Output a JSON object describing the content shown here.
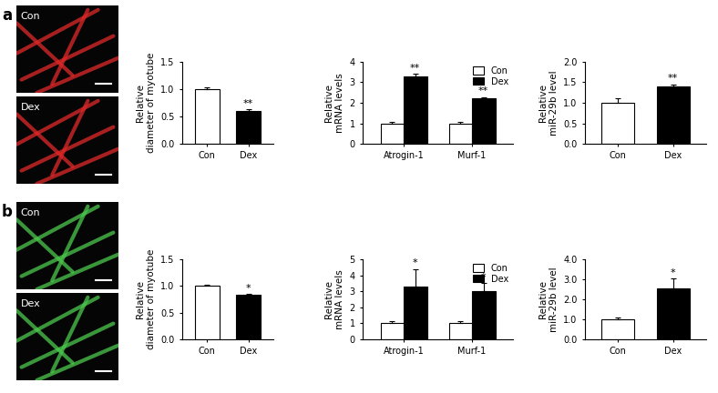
{
  "panels": [
    {
      "label": "a",
      "images": [
        "Con",
        "Dex"
      ]
    },
    {
      "label": "b",
      "images": [
        "Con",
        "Dex"
      ]
    }
  ],
  "chart_data": [
    {
      "type": "bar",
      "y_label": "Relative\ndiameter of myotube",
      "categories": [
        "Con",
        "Dex"
      ],
      "values": [
        1.0,
        0.6
      ],
      "errors": [
        0.04,
        0.03
      ],
      "colors": [
        "#ffffff",
        "#000000"
      ],
      "significance": [
        null,
        "**"
      ],
      "ylim": [
        0,
        1.5
      ],
      "yticks": [
        {
          "value": 0,
          "label": "0.0"
        },
        {
          "value": 0.5,
          "label": "0.5"
        },
        {
          "value": 1,
          "label": "1.0"
        },
        {
          "value": 1.5,
          "label": "1.5"
        }
      ]
    },
    {
      "type": "bar",
      "y_label": "Relative\nmRNA levels",
      "categories": [
        "Atrogin-1",
        "Murf-1"
      ],
      "series": [
        {
          "name": "Con",
          "color": "#ffffff",
          "values": [
            1.0,
            1.0
          ],
          "errors": [
            0.05,
            0.07
          ],
          "significance": [
            null,
            null
          ]
        },
        {
          "name": "Dex",
          "color": "#000000",
          "values": [
            3.3,
            2.2
          ],
          "errors": [
            0.1,
            0.08
          ],
          "significance": [
            "**",
            "**"
          ]
        }
      ],
      "legend": "upper right",
      "ylim": [
        0,
        4
      ],
      "yticks": [
        0,
        1,
        2,
        3,
        4
      ]
    },
    {
      "type": "bar",
      "y_label": "Relative\nmiR-29b level",
      "categories": [
        "Con",
        "Dex"
      ],
      "values": [
        1.0,
        1.4
      ],
      "errors": [
        0.1,
        0.05
      ],
      "colors": [
        "#ffffff",
        "#000000"
      ],
      "significance": [
        null,
        "**"
      ],
      "ylim": [
        0,
        2
      ],
      "yticks": [
        {
          "value": 0,
          "label": "0.0"
        },
        {
          "value": 0.5,
          "label": "0.5"
        },
        {
          "value": 1,
          "label": "1.0"
        },
        {
          "value": 1.5,
          "label": "1.5"
        },
        {
          "value": 2,
          "label": "2.0"
        }
      ]
    },
    {
      "type": "bar",
      "y_label": "Relative\ndiameter of myotube",
      "categories": [
        "Con",
        "Dex"
      ],
      "values": [
        1.0,
        0.83
      ],
      "errors": [
        0.03,
        0.02
      ],
      "colors": [
        "#ffffff",
        "#000000"
      ],
      "significance": [
        null,
        "*"
      ],
      "ylim": [
        0,
        1.5
      ],
      "yticks": [
        {
          "value": 0,
          "label": "0.0"
        },
        {
          "value": 0.5,
          "label": "0.5"
        },
        {
          "value": 1,
          "label": "1.0"
        },
        {
          "value": 1.5,
          "label": "1.5"
        }
      ]
    },
    {
      "type": "bar",
      "y_label": "Relative\nmRNA levels",
      "categories": [
        "Atrogin-1",
        "Murf-1"
      ],
      "series": [
        {
          "name": "Con",
          "color": "#ffffff",
          "values": [
            1.0,
            1.0
          ],
          "errors": [
            0.12,
            0.15
          ],
          "significance": [
            null,
            null
          ]
        },
        {
          "name": "Dex",
          "color": "#000000",
          "values": [
            3.3,
            3.0
          ],
          "errors": [
            1.1,
            0.5
          ],
          "significance": [
            "*",
            "*"
          ]
        }
      ],
      "legend": "upper right",
      "ylim": [
        0,
        5
      ],
      "yticks": [
        0,
        1,
        2,
        3,
        4,
        5
      ]
    },
    {
      "type": "bar",
      "y_label": "Relative\nmiR-29b level",
      "categories": [
        "Con",
        "Dex"
      ],
      "values": [
        1.0,
        2.55
      ],
      "errors": [
        0.08,
        0.5
      ],
      "colors": [
        "#ffffff",
        "#000000"
      ],
      "significance": [
        null,
        "*"
      ],
      "ylim": [
        0,
        4
      ],
      "yticks": [
        {
          "value": 0,
          "label": "0.0"
        },
        {
          "value": 1,
          "label": "1.0"
        },
        {
          "value": 2,
          "label": "2.0"
        },
        {
          "value": 3,
          "label": "3.0"
        },
        {
          "value": 4,
          "label": "4.0"
        }
      ]
    }
  ]
}
